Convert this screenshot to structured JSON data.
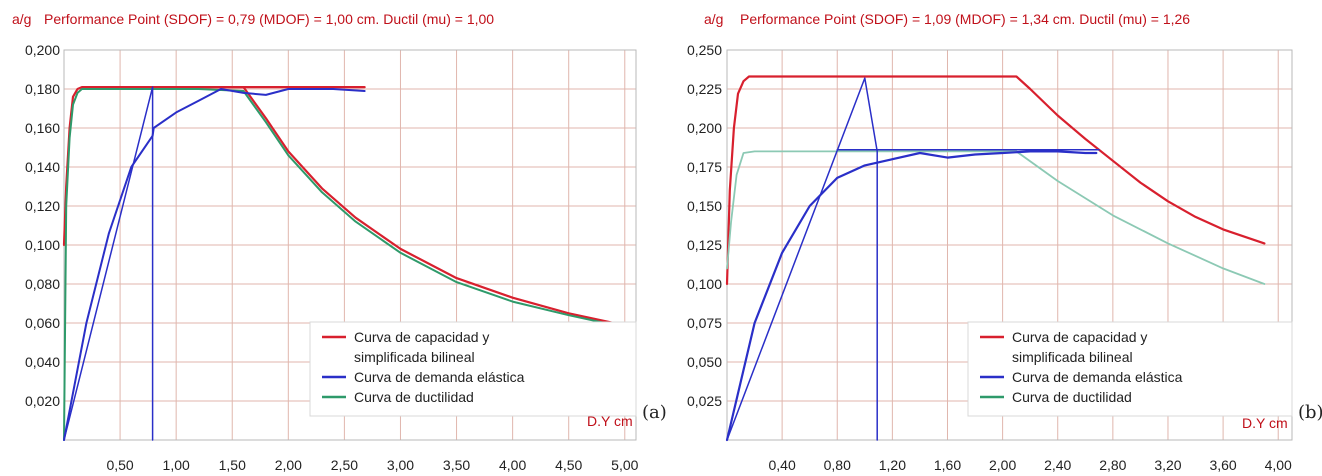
{
  "colors": {
    "capacity": "#d8202e",
    "demand": "#2a2fc8",
    "ductility": "#2e9a6a",
    "ductility_light": "#8cc9b4",
    "grid": "#e0b6ad",
    "title": "#c0101a"
  },
  "chart_data": [
    {
      "type": "line",
      "panel_label": "(a)",
      "ylabel": "a/g",
      "title": "Performance Point (SDOF) = 0,79 (MDOF) = 1,00 cm.  Ductil (mu) = 1,00",
      "xlabel": "D.Y cm",
      "xlim": [
        0,
        5.1
      ],
      "ylim": [
        0,
        0.2
      ],
      "xticks": [
        "0,50",
        "1,00",
        "1,50",
        "2,00",
        "2,50",
        "3,00",
        "3,50",
        "4,00",
        "4,50",
        "5,00"
      ],
      "yticks": [
        "0,020",
        "0,040",
        "0,060",
        "0,080",
        "0,100",
        "0,120",
        "0,140",
        "0,160",
        "0,180",
        "0,200"
      ],
      "grid": true,
      "legend": {
        "placement": "bottom-right",
        "entries": [
          "Curva de capacidad y",
          "simplificada bilineal",
          "Curva de demanda elástica",
          "Curva de ductilidad"
        ]
      },
      "series": [
        {
          "name": "Curva de capacidad y simplificada bilineal",
          "color": "capacity",
          "width": 2.2,
          "x": [
            0,
            0.02,
            0.05,
            0.08,
            0.12,
            0.16,
            0.2,
            0.4,
            0.8,
            1.2,
            1.6,
            1.8,
            2.0,
            2.3,
            2.6,
            3.0,
            3.5,
            4.0,
            4.5,
            4.9
          ],
          "y": [
            0.1,
            0.13,
            0.16,
            0.176,
            0.18,
            0.181,
            0.181,
            0.181,
            0.181,
            0.181,
            0.181,
            0.165,
            0.148,
            0.129,
            0.114,
            0.098,
            0.083,
            0.073,
            0.065,
            0.06
          ]
        },
        {
          "name": "Curva de capacidad y simplificada bilineal",
          "color": "capacity",
          "width": 2.2,
          "x": [
            0.79,
            2.68
          ],
          "y": [
            0.181,
            0.181
          ]
        },
        {
          "name": "Curva de ductilidad",
          "color": "ductility",
          "width": 2,
          "x": [
            0,
            0.02,
            0.05,
            0.08,
            0.12,
            0.16,
            0.2,
            0.4,
            0.8,
            1.2,
            1.6,
            1.8,
            2.0,
            2.3,
            2.6,
            3.0,
            3.5,
            4.0,
            4.5,
            4.9
          ],
          "y": [
            0.0,
            0.12,
            0.155,
            0.172,
            0.178,
            0.18,
            0.18,
            0.18,
            0.18,
            0.18,
            0.179,
            0.163,
            0.146,
            0.127,
            0.112,
            0.096,
            0.081,
            0.071,
            0.064,
            0.059
          ]
        },
        {
          "name": "Curva de demanda elástica",
          "color": "demand",
          "width": 2,
          "x": [
            0,
            0.2,
            0.4,
            0.6,
            0.79,
            0.8,
            1.0,
            1.2,
            1.4,
            1.6,
            1.8,
            2.0,
            2.2,
            2.4,
            2.68
          ],
          "y": [
            0,
            0.06,
            0.106,
            0.14,
            0.156,
            0.16,
            0.168,
            0.174,
            0.18,
            0.178,
            0.177,
            0.18,
            0.18,
            0.18,
            0.179
          ]
        },
        {
          "name": "Curva de demanda elástica",
          "color": "demand",
          "width": 1.5,
          "x": [
            0,
            0.79,
            0.79
          ],
          "y": [
            0,
            0.181,
            0
          ]
        }
      ]
    },
    {
      "type": "line",
      "panel_label": "(b)",
      "ylabel": "a/g",
      "title": "Performance Point (SDOF) = 1,09 (MDOF) = 1,34 cm.  Ductil (mu) = 1,26",
      "xlabel": "D.Y cm",
      "xlim": [
        0,
        4.1
      ],
      "ylim": [
        0,
        0.25
      ],
      "xticks": [
        "0,40",
        "0,80",
        "1,20",
        "1,60",
        "2,00",
        "2,40",
        "2,80",
        "3,20",
        "3,60",
        "4,00"
      ],
      "yticks": [
        "0,025",
        "0,050",
        "0,075",
        "0,100",
        "0,125",
        "0,150",
        "0,175",
        "0,200",
        "0,225",
        "0,250"
      ],
      "grid": true,
      "legend": {
        "placement": "bottom-right",
        "entries": [
          "Curva de capacidad y",
          "simplificada bilineal",
          "Curva de demanda elástica",
          "Curva de ductilidad"
        ]
      },
      "series": [
        {
          "name": "Curva de capacidad y simplificada bilineal",
          "color": "capacity",
          "width": 2.2,
          "x": [
            0,
            0.02,
            0.05,
            0.08,
            0.12,
            0.16,
            0.3,
            1.0,
            2.1,
            2.2,
            2.4,
            2.6,
            2.8,
            3.0,
            3.2,
            3.4,
            3.6,
            3.9
          ],
          "y": [
            0.1,
            0.16,
            0.2,
            0.222,
            0.23,
            0.233,
            0.233,
            0.233,
            0.233,
            0.225,
            0.208,
            0.193,
            0.179,
            0.165,
            0.153,
            0.143,
            0.135,
            0.126
          ]
        },
        {
          "name": "Curva de ductilidad",
          "color": "ductility_light",
          "width": 1.8,
          "x": [
            0,
            0.03,
            0.07,
            0.12,
            0.2,
            0.5,
            1.0,
            1.5,
            2.1,
            2.4,
            2.8,
            3.2,
            3.6,
            3.9
          ],
          "y": [
            0.11,
            0.14,
            0.17,
            0.184,
            0.185,
            0.185,
            0.185,
            0.185,
            0.185,
            0.166,
            0.144,
            0.126,
            0.11,
            0.1
          ]
        },
        {
          "name": "Curva de demanda elástica",
          "color": "demand",
          "width": 2.2,
          "x": [
            0,
            0.2,
            0.4,
            0.6,
            0.8,
            1.0,
            1.2,
            1.4,
            1.6,
            1.8,
            2.0,
            2.2,
            2.4,
            2.6,
            2.68
          ],
          "y": [
            0,
            0.075,
            0.12,
            0.15,
            0.168,
            0.176,
            0.18,
            0.184,
            0.181,
            0.183,
            0.184,
            0.185,
            0.185,
            0.184,
            0.184
          ]
        },
        {
          "name": "Curva de demanda elástica",
          "color": "demand",
          "width": 1.5,
          "x": [
            0,
            1.0,
            1.09,
            1.09
          ],
          "y": [
            0,
            0.232,
            0.185,
            0
          ]
        },
        {
          "name": "Curva de demanda elástica",
          "color": "demand",
          "width": 1.5,
          "x": [
            0.8,
            2.7
          ],
          "y": [
            0.186,
            0.186
          ]
        }
      ]
    }
  ]
}
